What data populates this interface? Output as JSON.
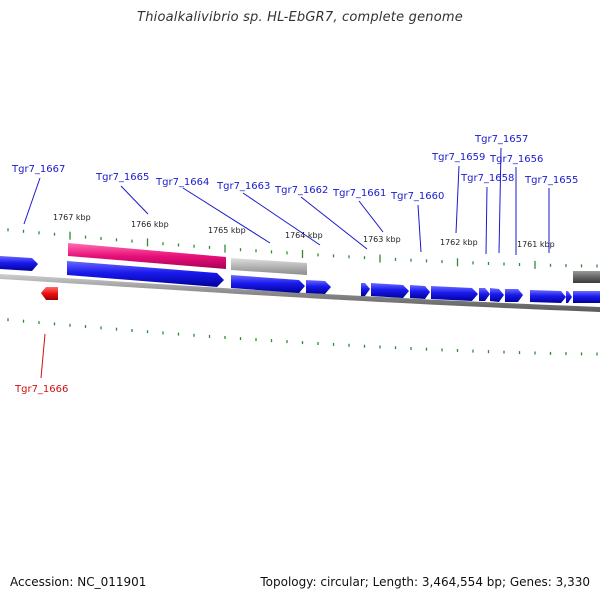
{
  "title": "Thioalkalivibrio sp. HL-EbGR7, complete genome",
  "footer": {
    "accession": "Accession: NC_011901",
    "topology": "Topology: circular; Length: 3,464,554 bp; Genes: 3,330"
  },
  "colors": {
    "gene_forward": "#1a1aee",
    "gene_highlight": "#e8107a",
    "gene_grey": "#b4b4b4",
    "gene_red": "#ee1111",
    "backbone": "#8a8a8a",
    "tick": "#2e8b2e",
    "label_blue": "#1a1acc",
    "label_red": "#cc1111"
  },
  "kbp_labels": [
    "1767 kbp",
    "1766 kbp",
    "1765 kbp",
    "1764 kbp",
    "1763 kbp",
    "1762 kbp",
    "1761 kbp"
  ],
  "gene_labels": {
    "upper": [
      "Tgr7_1667",
      "Tgr7_1665",
      "Tgr7_1664",
      "Tgr7_1663",
      "Tgr7_1662",
      "Tgr7_1661",
      "Tgr7_1660",
      "Tgr7_1659",
      "Tgr7_1658",
      "Tgr7_1657",
      "Tgr7_1656",
      "Tgr7_1655"
    ],
    "lower": [
      "Tgr7_1666"
    ]
  }
}
